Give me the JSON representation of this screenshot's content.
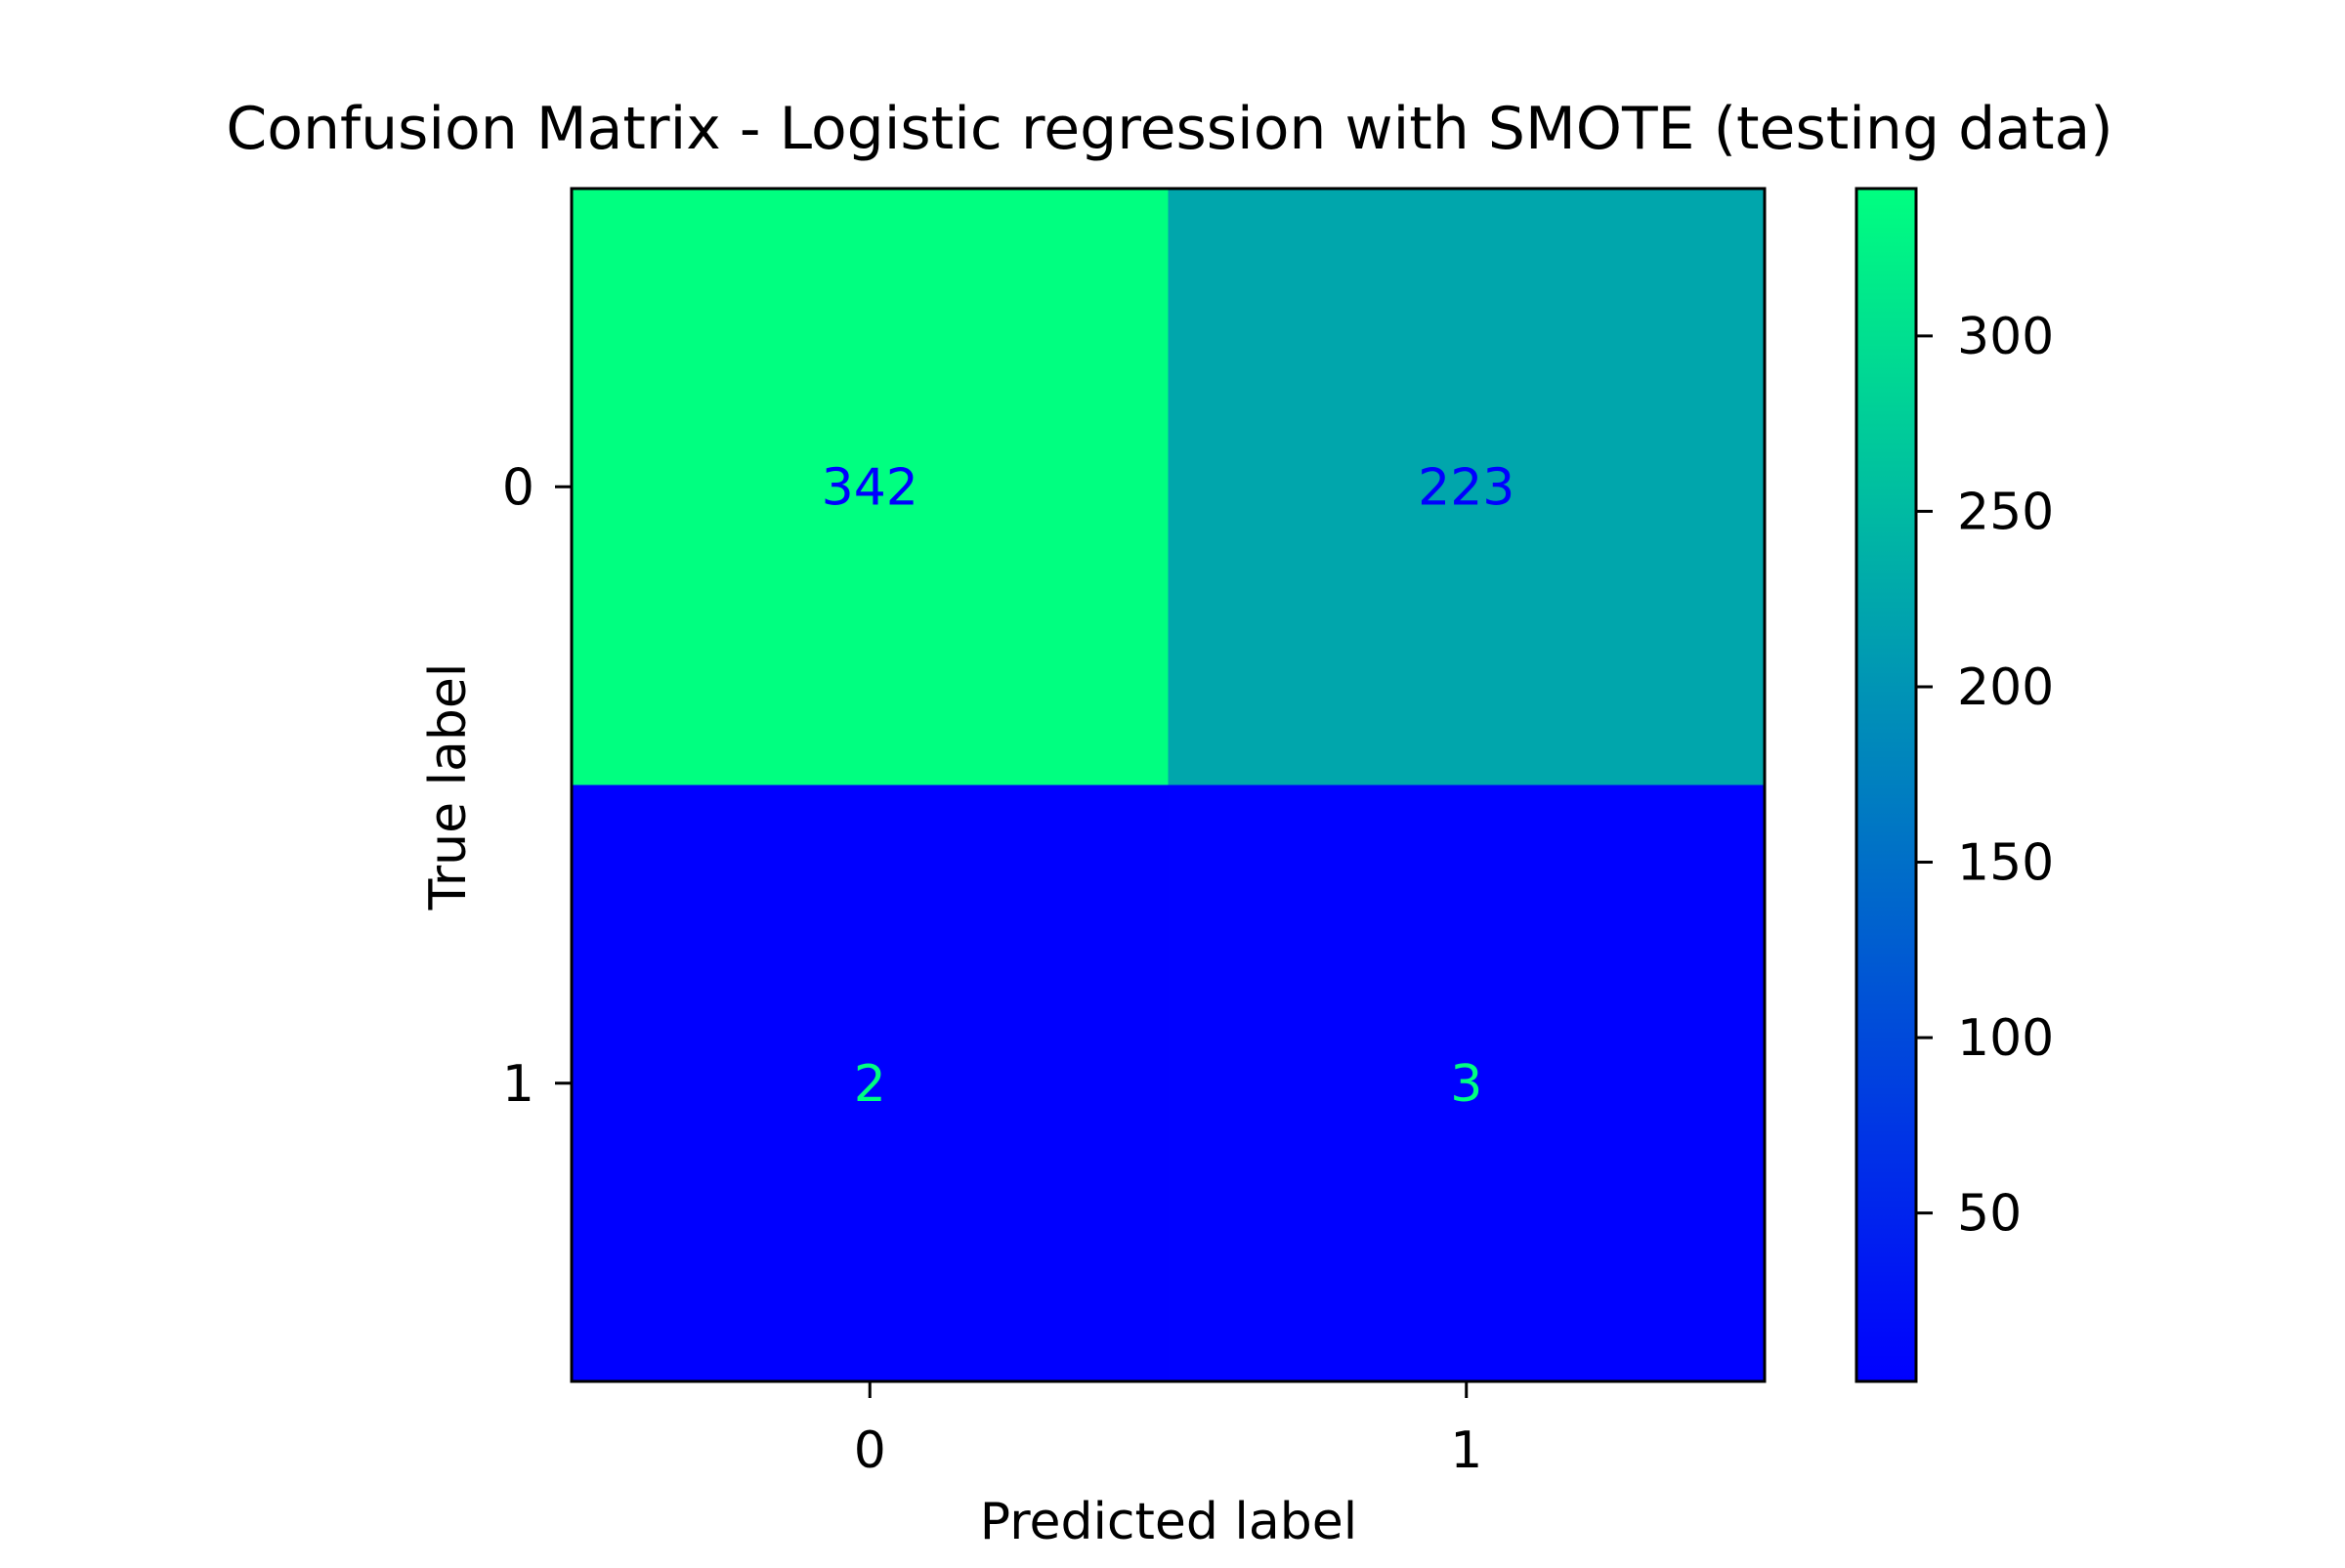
{
  "chart_data": {
    "type": "heatmap",
    "title": "Confusion Matrix - Logistic regression with SMOTE (testing data)",
    "xlabel": "Predicted label",
    "ylabel": "True label",
    "x_categories": [
      "0",
      "1"
    ],
    "y_categories": [
      "0",
      "1"
    ],
    "matrix": [
      [
        342,
        223
      ],
      [
        2,
        3
      ]
    ],
    "colormap": "winter",
    "colormap_low": "#0000ff",
    "colormap_high": "#00ff80",
    "colorbar": {
      "range": [
        2,
        342
      ],
      "ticks": [
        50,
        100,
        150,
        200,
        250,
        300
      ],
      "tick_labels": [
        "50",
        "100",
        "150",
        "200",
        "250",
        "300"
      ]
    },
    "annotation_colors": {
      "on_high": "#0000ff",
      "on_low": "#00ff80"
    },
    "grid": false,
    "legend": "none"
  }
}
